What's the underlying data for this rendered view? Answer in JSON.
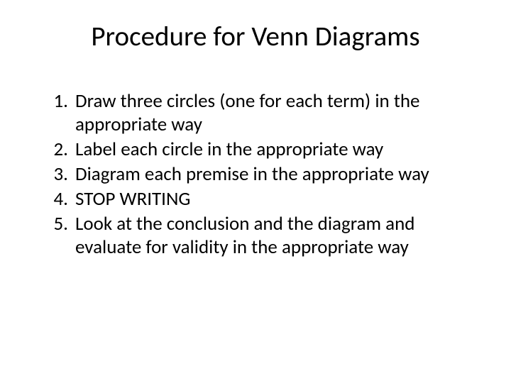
{
  "slide": {
    "title": "Procedure for Venn Diagrams",
    "items": [
      {
        "number": "1.",
        "text": "Draw three circles (one for each term) in the appropriate way"
      },
      {
        "number": "2.",
        "text": "Label each circle in the appropriate way"
      },
      {
        "number": "3.",
        "text": "Diagram each premise in the appropriate way"
      },
      {
        "number": "4.",
        "text": "STOP WRITING"
      },
      {
        "number": "5.",
        "text": "Look at the conclusion and the diagram and evaluate for validity in the appropriate way"
      }
    ],
    "background_color": "#ffffff",
    "text_color": "#000000",
    "title_fontsize": 39,
    "body_fontsize": 27,
    "font_family": "Calibri"
  }
}
